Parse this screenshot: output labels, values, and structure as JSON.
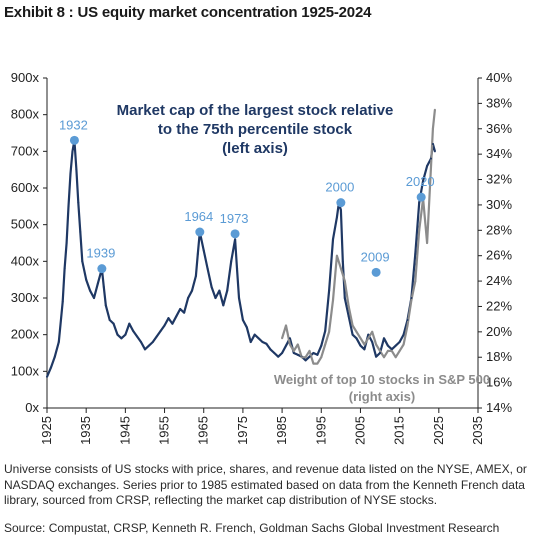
{
  "title": "Exhibit 8 : US equity market concentration 1925-2024",
  "note": "Universe consists of US stocks with price, shares, and revenue data listed on the NYSE, AMEX, or NASDAQ exchanges. Series prior to 1985 estimated based on data from the Kenneth French data library, sourced from CRSP, reflecting the market cap distribution of NYSE stocks.",
  "source": "Source: Compustat, CRSP, Kenneth R. French, Goldman Sachs Global Investment Research",
  "chart_data": {
    "type": "line",
    "x_ticks": [
      "1925",
      "1935",
      "1945",
      "1955",
      "1965",
      "1975",
      "1985",
      "1995",
      "2005",
      "2015",
      "2025",
      "2035"
    ],
    "xlim": [
      1925,
      2035
    ],
    "left_axis": {
      "ticks": [
        "0x",
        "100x",
        "200x",
        "300x",
        "400x",
        "500x",
        "600x",
        "700x",
        "800x",
        "900x"
      ],
      "ylim": [
        0,
        900
      ]
    },
    "right_axis": {
      "ticks": [
        "14%",
        "16%",
        "18%",
        "20%",
        "22%",
        "24%",
        "26%",
        "28%",
        "30%",
        "32%",
        "34%",
        "36%",
        "38%",
        "40%"
      ],
      "ylim": [
        14,
        40
      ]
    },
    "series": [
      {
        "name": "Market cap of the largest stock relative",
        "name_line2": "to the 75th percentile stock",
        "name_line3": "(left axis)",
        "axis": "left",
        "color": "#1f3864",
        "x": [
          1925,
          1926,
          1927,
          1928,
          1929,
          1929.5,
          1930,
          1930.5,
          1931,
          1931.5,
          1932,
          1932.5,
          1933,
          1933.5,
          1934,
          1935,
          1936,
          1937,
          1938,
          1939,
          1939.5,
          1940,
          1941,
          1942,
          1943,
          1944,
          1945,
          1946,
          1947,
          1948,
          1949,
          1950,
          1951,
          1952,
          1953,
          1954,
          1955,
          1956,
          1957,
          1958,
          1959,
          1960,
          1961,
          1962,
          1963,
          1963.5,
          1964,
          1965,
          1966,
          1967,
          1968,
          1969,
          1970,
          1971,
          1972,
          1973,
          1973.5,
          1974,
          1975,
          1976,
          1977,
          1978,
          1979,
          1980,
          1981,
          1982,
          1983,
          1984,
          1985,
          1986,
          1987,
          1988,
          1989,
          1990,
          1991,
          1992,
          1993,
          1994,
          1995,
          1996,
          1997,
          1998,
          1999,
          1999.5,
          2000,
          2000.5,
          2001,
          2002,
          2003,
          2004,
          2005,
          2006,
          2007,
          2008,
          2009,
          2010,
          2011,
          2012,
          2013,
          2014,
          2015,
          2016,
          2017,
          2018,
          2019,
          2020,
          2021,
          2022,
          2023,
          2023.5,
          2024
        ],
        "y": [
          85,
          110,
          140,
          180,
          290,
          380,
          450,
          550,
          640,
          700,
          730,
          650,
          560,
          480,
          400,
          350,
          320,
          300,
          340,
          380,
          330,
          280,
          240,
          230,
          200,
          190,
          200,
          230,
          210,
          195,
          180,
          160,
          170,
          180,
          195,
          210,
          225,
          245,
          230,
          250,
          270,
          260,
          300,
          320,
          360,
          420,
          480,
          430,
          380,
          330,
          300,
          320,
          280,
          320,
          400,
          460,
          380,
          300,
          240,
          220,
          180,
          200,
          190,
          180,
          175,
          160,
          150,
          140,
          150,
          170,
          190,
          150,
          145,
          140,
          130,
          140,
          150,
          145,
          170,
          210,
          320,
          460,
          520,
          560,
          540,
          400,
          300,
          250,
          200,
          190,
          170,
          160,
          200,
          180,
          140,
          150,
          190,
          170,
          160,
          170,
          180,
          200,
          240,
          300,
          420,
          560,
          620,
          660,
          680,
          720,
          700
        ]
      },
      {
        "name": "Weight of top 10 stocks in S&P 500",
        "name_line2": "(right axis)",
        "axis": "right",
        "color": "#8c8c8c",
        "x": [
          1985,
          1986,
          1987,
          1988,
          1989,
          1990,
          1991,
          1992,
          1993,
          1994,
          1995,
          1996,
          1997,
          1998,
          1999,
          2000,
          2001,
          2002,
          2003,
          2004,
          2005,
          2006,
          2007,
          2008,
          2009,
          2010,
          2011,
          2012,
          2013,
          2014,
          2015,
          2016,
          2017,
          2018,
          2019,
          2020,
          2021,
          2022,
          2023,
          2023.5,
          2024
        ],
        "y": [
          19.5,
          20.5,
          19.0,
          18.5,
          19.0,
          18.0,
          18.0,
          18.5,
          17.5,
          17.5,
          18.0,
          19.0,
          20.0,
          22.5,
          26.0,
          25.0,
          24.0,
          22.0,
          20.5,
          20.0,
          19.5,
          19.0,
          19.5,
          20.0,
          19.0,
          18.5,
          18.0,
          18.5,
          18.5,
          18.0,
          18.5,
          19.0,
          20.5,
          22.5,
          24.0,
          28.0,
          30.5,
          27.0,
          33.0,
          36.0,
          37.5
        ]
      }
    ],
    "annotations": [
      {
        "label": "1932",
        "x": 1932,
        "y": 730
      },
      {
        "label": "1939",
        "x": 1939,
        "y": 380
      },
      {
        "label": "1964",
        "x": 1964,
        "y": 480
      },
      {
        "label": "1973",
        "x": 1973,
        "y": 475
      },
      {
        "label": "2000",
        "x": 2000,
        "y": 560
      },
      {
        "label": "2009",
        "x": 2009,
        "y": 370
      },
      {
        "label": "2020",
        "x": 2020.5,
        "y": 575
      }
    ]
  }
}
